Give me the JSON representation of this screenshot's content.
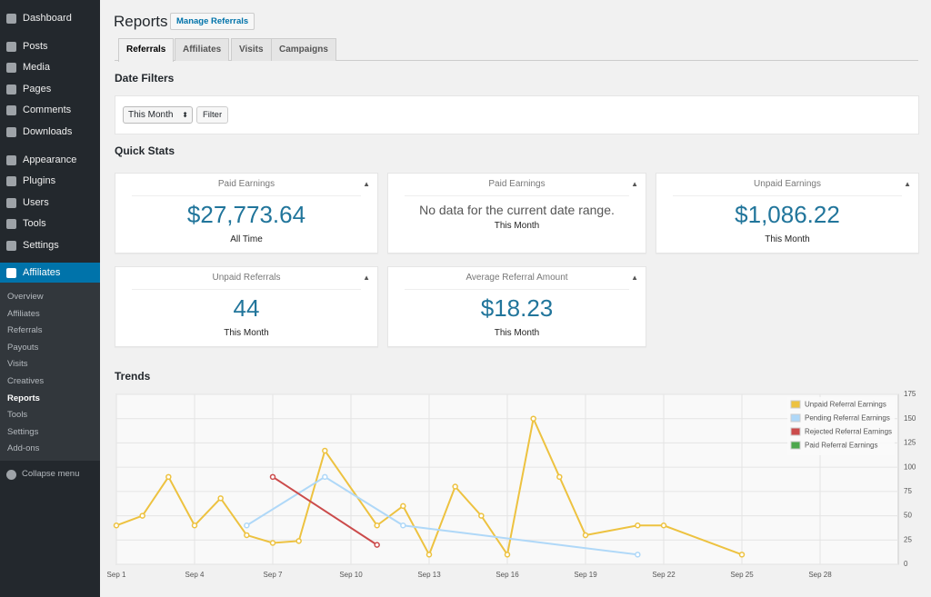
{
  "sidebar": {
    "menu": [
      "Dashboard",
      "Posts",
      "Media",
      "Pages",
      "Comments",
      "Downloads",
      "Appearance",
      "Plugins",
      "Users",
      "Tools",
      "Settings",
      "Affiliates"
    ],
    "submenu": [
      "Overview",
      "Affiliates",
      "Referrals",
      "Payouts",
      "Visits",
      "Creatives",
      "Reports",
      "Tools",
      "Settings",
      "Add-ons"
    ],
    "collapse": "Collapse menu"
  },
  "header": {
    "title": "Reports",
    "button": "Manage Referrals"
  },
  "tabs": [
    "Referrals",
    "Affiliates",
    "Visits",
    "Campaigns"
  ],
  "date_filters": {
    "title": "Date Filters",
    "select": "This Month",
    "button": "Filter"
  },
  "quick_stats": {
    "title": "Quick Stats",
    "cards": [
      {
        "label": "Paid Earnings",
        "value": "$27,773.64",
        "period": "All Time"
      },
      {
        "label": "Paid Earnings",
        "value": "No data for the current date range.",
        "period": "This Month"
      },
      {
        "label": "Unpaid Earnings",
        "value": "$1,086.22",
        "period": "This Month"
      },
      {
        "label": "Unpaid Referrals",
        "value": "44",
        "period": "This Month"
      },
      {
        "label": "Average Referral Amount",
        "value": "$18.23",
        "period": "This Month"
      }
    ]
  },
  "chart_data": {
    "type": "line",
    "title": "Trends",
    "xlim": [
      1,
      31
    ],
    "ylim": [
      0,
      175
    ],
    "xticks": [
      {
        "value": 1,
        "label": "Sep 1"
      },
      {
        "value": 4,
        "label": "Sep 4"
      },
      {
        "value": 7,
        "label": "Sep 7"
      },
      {
        "value": 10,
        "label": "Sep 10"
      },
      {
        "value": 13,
        "label": "Sep 13"
      },
      {
        "value": 16,
        "label": "Sep 16"
      },
      {
        "value": 19,
        "label": "Sep 19"
      },
      {
        "value": 22,
        "label": "Sep 22"
      },
      {
        "value": 25,
        "label": "Sep 25"
      },
      {
        "value": 28,
        "label": "Sep 28"
      }
    ],
    "yticks": [
      0,
      25,
      50,
      75,
      100,
      125,
      150,
      175
    ],
    "grid": true,
    "legend": "top-right",
    "series": [
      {
        "name": "Unpaid Referral Earnings",
        "color": "#edc240",
        "x": [
          1,
          2,
          3,
          4,
          5,
          6,
          7,
          8,
          9,
          11,
          12,
          13,
          14,
          15,
          16,
          17,
          18,
          19,
          21,
          22,
          25
        ],
        "values": [
          40,
          50,
          90,
          40,
          68,
          30,
          22,
          24,
          117,
          40,
          60,
          10,
          80,
          50,
          10,
          150,
          90,
          30,
          40,
          40,
          10
        ]
      },
      {
        "name": "Pending Referral Earnings",
        "color": "#afd8f8",
        "x": [
          6,
          9,
          12,
          21
        ],
        "values": [
          40,
          90,
          40,
          10
        ]
      },
      {
        "name": "Rejected Referral Earnings",
        "color": "#cb4b4b",
        "x": [
          7,
          11
        ],
        "values": [
          90,
          20
        ]
      },
      {
        "name": "Paid Referral Earnings",
        "color": "#4da74d",
        "x": [],
        "values": []
      }
    ]
  }
}
